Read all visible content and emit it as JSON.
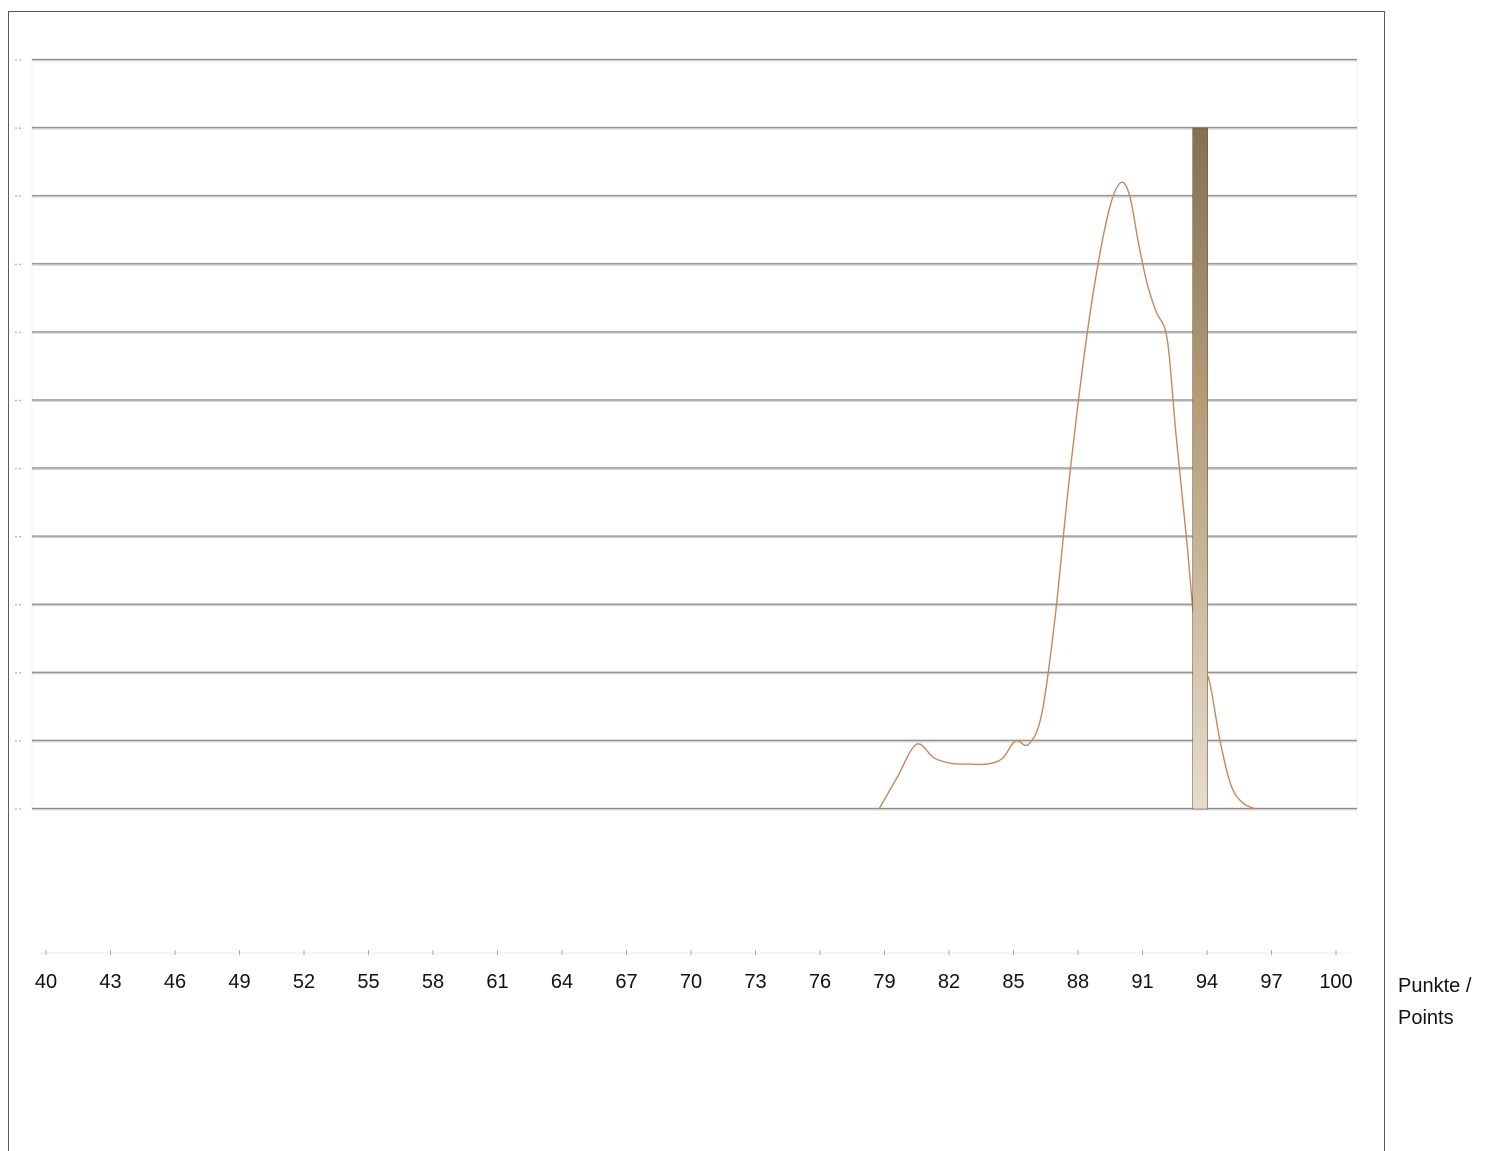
{
  "chart_data": {
    "type": "line",
    "title": "",
    "xlabel": "Punkte / Points",
    "xlabel_lines": [
      "Punkte /",
      "Points"
    ],
    "ylabel": "",
    "xlim": [
      40,
      100
    ],
    "x_ticks": [
      40,
      43,
      46,
      49,
      52,
      55,
      58,
      61,
      64,
      67,
      70,
      73,
      76,
      79,
      82,
      85,
      88,
      91,
      94,
      97,
      100
    ],
    "y_gridlines": 12,
    "ylim": [
      0,
      11
    ],
    "grid": true,
    "series": [
      {
        "type": "line",
        "color": "#c8875a",
        "x": [
          78.5,
          79.3,
          80.2,
          81,
          81.8,
          82.6,
          83.4,
          84.1,
          84.7,
          85.3,
          85.9,
          86.5,
          87.1,
          87.8,
          88.4,
          89.0,
          89.5,
          89.9,
          90.3,
          90.7,
          91.1,
          91.6,
          92.0,
          92.5,
          93.0,
          93.5,
          94.0,
          94.5,
          95.0,
          95.6
        ],
        "y": [
          0,
          0.45,
          0.95,
          0.75,
          0.67,
          0.66,
          0.66,
          0.74,
          1.0,
          0.95,
          1.4,
          2.8,
          4.7,
          6.6,
          7.9,
          8.85,
          9.2,
          9.0,
          8.3,
          7.7,
          7.3,
          6.9,
          5.5,
          3.9,
          2.2,
          1.9,
          1.0,
          0.35,
          0.1,
          0
        ]
      },
      {
        "type": "bar",
        "x": 93.1,
        "value": 10,
        "color_top": "#857054",
        "color_mid": "#b49c76",
        "color_bottom": "#e6dccd"
      }
    ]
  }
}
